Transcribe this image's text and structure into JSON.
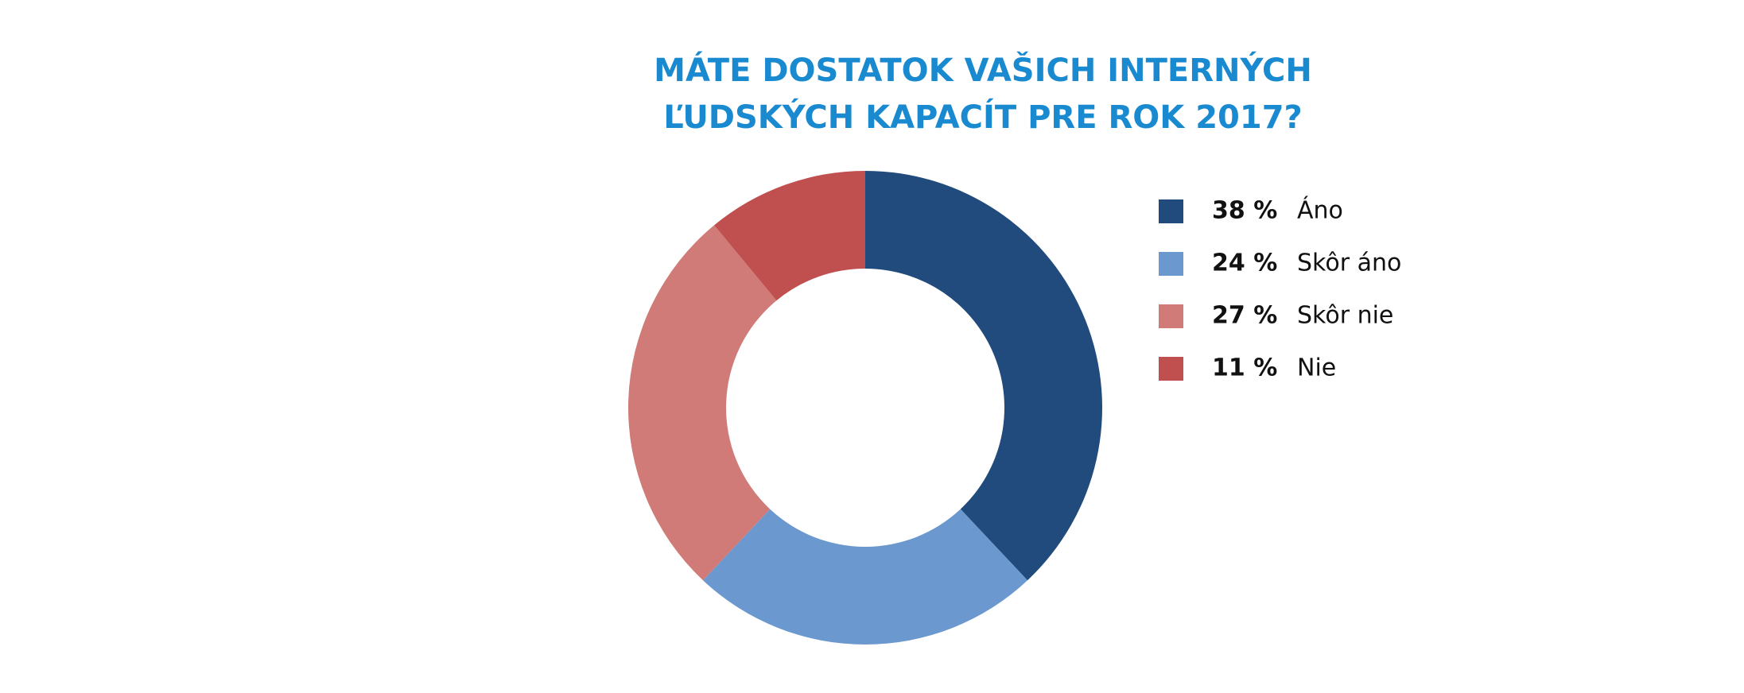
{
  "chart_data": {
    "type": "donut",
    "title": [
      "MÁTE DOSTATOK VAŠICH INTERNÝCH",
      "ĽUDSKÝCH KAPACÍT PRE ROK 2017?"
    ],
    "categories": [
      "Áno",
      "Skôr áno",
      "Skôr nie",
      "Nie"
    ],
    "values": [
      38,
      24,
      27,
      11
    ],
    "value_labels": [
      "38 %",
      "24 %",
      "27 %",
      "11 %"
    ],
    "colors": [
      "#214a7d",
      "#6a98cf",
      "#d07b77",
      "#c0504f"
    ],
    "legend": "right"
  }
}
